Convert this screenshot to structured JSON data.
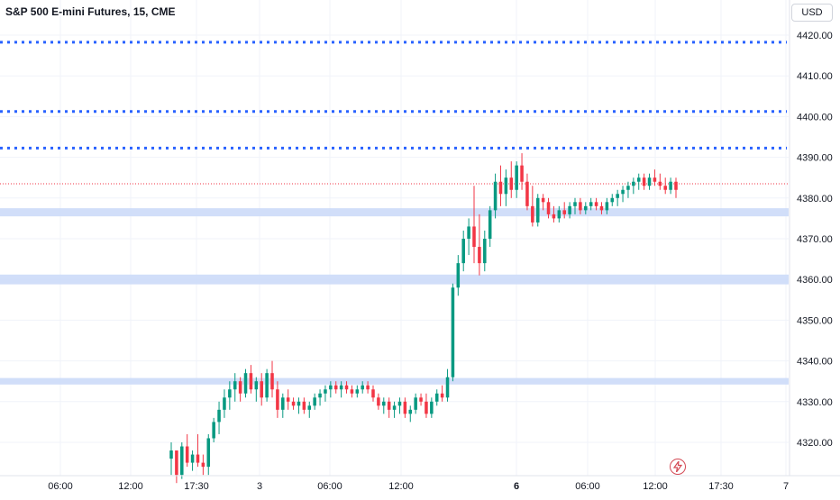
{
  "header": {
    "title": "S&P 500 E-mini Futures, 15, CME",
    "currency": "USD"
  },
  "icons": {
    "flash": "lightning-bolt-icon"
  },
  "colors": {
    "up": "#089981",
    "down": "#f23645",
    "level_line": "#2962ff",
    "zone": "#c9d8f8",
    "last_price": "#f23645",
    "grid": "#f0f3fa"
  },
  "chart_data": {
    "type": "candlestick",
    "title": "S&P 500 E-mini Futures, 15, CME",
    "x_tick_labels": [
      "06:00",
      "12:00",
      "17:30",
      "3",
      "06:00",
      "12:00",
      "6",
      "06:00",
      "12:00",
      "17:30",
      "7"
    ],
    "y_tick_labels": [
      4320,
      4330,
      4340,
      4350,
      4360,
      4370,
      4380,
      4390,
      4400,
      4410,
      4420
    ],
    "ylim": [
      4313,
      4423
    ],
    "last_price": 4383.5,
    "horizontal_levels": [
      4418.25,
      4401.25,
      4392.25
    ],
    "zones": [
      [
        4375.5,
        4377.5
      ],
      [
        4358.8,
        4361.2
      ],
      [
        4334.2,
        4335.8
      ]
    ],
    "candles": [
      [
        4316,
        4320,
        4312,
        4318
      ],
      [
        4318,
        4318,
        4310,
        4312
      ],
      [
        4312,
        4320,
        4311,
        4319
      ],
      [
        4319,
        4322,
        4314,
        4315
      ],
      [
        4315,
        4318,
        4313,
        4317
      ],
      [
        4317,
        4322,
        4314,
        4315
      ],
      [
        4315,
        4317,
        4312,
        4314
      ],
      [
        4314,
        4322,
        4312,
        4321
      ],
      [
        4321,
        4326,
        4320,
        4325
      ],
      [
        4325,
        4330,
        4322,
        4328
      ],
      [
        4328,
        4333,
        4326,
        4331
      ],
      [
        4331,
        4335,
        4328,
        4333
      ],
      [
        4333,
        4337,
        4330,
        4335
      ],
      [
        4335,
        4336,
        4330,
        4332
      ],
      [
        4332,
        4338,
        4331,
        4337
      ],
      [
        4337,
        4339,
        4332,
        4333
      ],
      [
        4333,
        4336,
        4330,
        4335
      ],
      [
        4335,
        4337,
        4329,
        4331
      ],
      [
        4331,
        4338,
        4330,
        4337
      ],
      [
        4337,
        4340,
        4331,
        4333
      ],
      [
        4333,
        4335,
        4326,
        4328
      ],
      [
        4328,
        4332,
        4326,
        4331
      ],
      [
        4331,
        4333,
        4328,
        4330
      ],
      [
        4330,
        4331,
        4328,
        4329
      ],
      [
        4329,
        4331,
        4327,
        4330
      ],
      [
        4330,
        4331,
        4327,
        4328
      ],
      [
        4328,
        4330,
        4326,
        4329
      ],
      [
        4329,
        4332,
        4328,
        4331
      ],
      [
        4331,
        4333,
        4329,
        4332
      ],
      [
        4332,
        4334,
        4330,
        4333
      ],
      [
        4333,
        4335,
        4331,
        4334
      ],
      [
        4334,
        4335,
        4332,
        4333
      ],
      [
        4333,
        4335,
        4331,
        4334
      ],
      [
        4334,
        4335,
        4332,
        4333
      ],
      [
        4333,
        4334,
        4331,
        4332
      ],
      [
        4332,
        4334,
        4331,
        4333
      ],
      [
        4333,
        4335,
        4332,
        4334
      ],
      [
        4334,
        4335,
        4332,
        4333
      ],
      [
        4333,
        4334,
        4330,
        4331
      ],
      [
        4331,
        4332,
        4328,
        4329
      ],
      [
        4329,
        4331,
        4327,
        4330
      ],
      [
        4330,
        4331,
        4326,
        4328
      ],
      [
        4328,
        4330,
        4326,
        4329
      ],
      [
        4329,
        4331,
        4327,
        4330
      ],
      [
        4330,
        4331,
        4326,
        4327
      ],
      [
        4327,
        4329,
        4325,
        4328
      ],
      [
        4328,
        4332,
        4327,
        4331
      ],
      [
        4331,
        4332,
        4329,
        4330
      ],
      [
        4330,
        4332,
        4326,
        4327
      ],
      [
        4327,
        4331,
        4326,
        4330
      ],
      [
        4330,
        4333,
        4329,
        4332
      ],
      [
        4332,
        4334,
        4330,
        4331
      ],
      [
        4331,
        4338,
        4330,
        4336
      ],
      [
        4336,
        4359,
        4335,
        4358
      ],
      [
        4358,
        4366,
        4356,
        4364
      ],
      [
        4364,
        4372,
        4362,
        4370
      ],
      [
        4370,
        4375,
        4366,
        4373
      ],
      [
        4373,
        4383,
        4364,
        4368
      ],
      [
        4368,
        4376,
        4361,
        4364
      ],
      [
        4364,
        4372,
        4362,
        4370
      ],
      [
        4370,
        4378,
        4368,
        4377
      ],
      [
        4377,
        4386,
        4375,
        4384
      ],
      [
        4384,
        4388,
        4378,
        4381
      ],
      [
        4381,
        4387,
        4378,
        4385
      ],
      [
        4385,
        4389,
        4380,
        4382
      ],
      [
        4382,
        4389,
        4380,
        4388
      ],
      [
        4388,
        4391,
        4382,
        4384
      ],
      [
        4384,
        4386,
        4377,
        4378
      ],
      [
        4378,
        4383,
        4373,
        4374
      ],
      [
        4374,
        4381,
        4373,
        4380
      ],
      [
        4380,
        4381,
        4377,
        4379
      ],
      [
        4379,
        4380,
        4375,
        4376
      ],
      [
        4376,
        4378,
        4374,
        4375
      ],
      [
        4375,
        4378,
        4374,
        4377
      ],
      [
        4377,
        4379,
        4375,
        4376
      ],
      [
        4376,
        4379,
        4375,
        4378
      ],
      [
        4378,
        4380,
        4376,
        4379
      ],
      [
        4379,
        4380,
        4376,
        4377
      ],
      [
        4377,
        4379,
        4376,
        4378
      ],
      [
        4378,
        4380,
        4377,
        4379
      ],
      [
        4379,
        4380,
        4377,
        4378
      ],
      [
        4378,
        4379,
        4376,
        4377
      ],
      [
        4377,
        4380,
        4376,
        4379
      ],
      [
        4379,
        4381,
        4378,
        4380
      ],
      [
        4380,
        4382,
        4378,
        4381
      ],
      [
        4381,
        4383,
        4379,
        4382
      ],
      [
        4382,
        4384,
        4380,
        4383
      ],
      [
        4383,
        4385,
        4381,
        4384
      ],
      [
        4384,
        4386,
        4382,
        4385
      ],
      [
        4385,
        4386,
        4382,
        4383
      ],
      [
        4383,
        4386,
        4382,
        4385
      ],
      [
        4385,
        4387,
        4383,
        4384
      ],
      [
        4384,
        4386,
        4382,
        4383
      ],
      [
        4383,
        4385,
        4381,
        4382
      ],
      [
        4382,
        4385,
        4381,
        4384
      ],
      [
        4384,
        4385,
        4380,
        4382
      ]
    ]
  }
}
